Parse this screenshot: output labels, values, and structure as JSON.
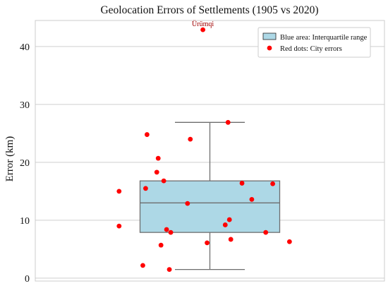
{
  "chart_data": {
    "type": "box",
    "title": "Geolocation Errors of Settlements (1905 vs 2020)",
    "xlabel": "",
    "ylabel": "Error (km)",
    "ylim": [
      -0.5,
      44.5
    ],
    "yticks": [
      0,
      10,
      20,
      30,
      40
    ],
    "ytick_labels": [
      "0",
      "10",
      "20",
      "30",
      "40"
    ],
    "grid": "horizontal",
    "box": {
      "whisker_low": 1.5,
      "q1": 7.9,
      "median": 13.0,
      "q3": 16.8,
      "whisker_high": 26.9
    },
    "points": [
      {
        "x": -0.05,
        "y": 42.9,
        "label": "Ürümqi"
      },
      {
        "x": 0.13,
        "y": 26.9
      },
      {
        "x": -0.45,
        "y": 24.8
      },
      {
        "x": -0.14,
        "y": 24.0
      },
      {
        "x": -0.37,
        "y": 20.7
      },
      {
        "x": -0.38,
        "y": 18.3
      },
      {
        "x": -0.33,
        "y": 16.8
      },
      {
        "x": 0.23,
        "y": 16.4
      },
      {
        "x": 0.45,
        "y": 16.3
      },
      {
        "x": -0.46,
        "y": 15.5
      },
      {
        "x": -0.65,
        "y": 15.0
      },
      {
        "x": 0.3,
        "y": 13.6
      },
      {
        "x": -0.16,
        "y": 12.9
      },
      {
        "x": 0.14,
        "y": 10.1
      },
      {
        "x": 0.11,
        "y": 9.2
      },
      {
        "x": -0.65,
        "y": 9.0
      },
      {
        "x": -0.31,
        "y": 8.4
      },
      {
        "x": -0.28,
        "y": 7.9
      },
      {
        "x": 0.4,
        "y": 7.9
      },
      {
        "x": 0.15,
        "y": 6.7
      },
      {
        "x": -0.02,
        "y": 6.1
      },
      {
        "x": 0.57,
        "y": 6.3
      },
      {
        "x": -0.35,
        "y": 5.7
      },
      {
        "x": -0.48,
        "y": 2.2
      },
      {
        "x": -0.29,
        "y": 1.5
      }
    ],
    "legend": {
      "position": "top-right",
      "entries": [
        {
          "label": "Blue area: Interquartile range",
          "marker": "patch"
        },
        {
          "label": "Red dots: City errors",
          "marker": "dot"
        }
      ]
    },
    "annotations": [
      {
        "text": "Ürümqi",
        "x": -0.05,
        "y": 42.9
      }
    ],
    "colors": {
      "box_fill": "#add8e6",
      "box_edge": "#6e6e6e",
      "whisker": "#6e6e6e",
      "points": "#ff0000",
      "annotation": "#a00000",
      "grid": "#cfcfcf"
    }
  }
}
